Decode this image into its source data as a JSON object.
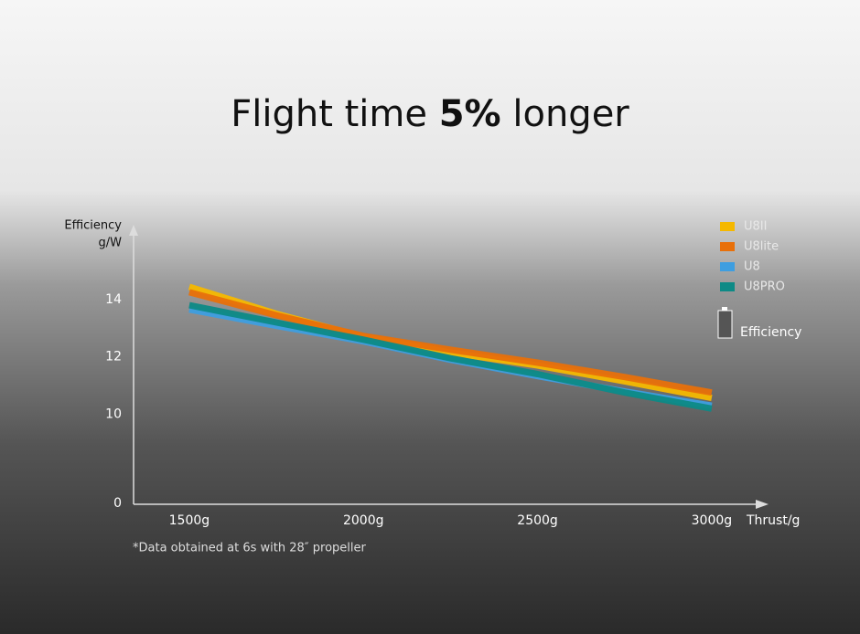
{
  "chart_data": {
    "type": "line",
    "title": {
      "prefix": "Flight time",
      "highlight": "5%",
      "suffix": "longer"
    },
    "y_label": [
      "Efficiency",
      "g/W"
    ],
    "x_label": "Thrust/g",
    "note": "*Data obtained at 6s with 28″ propeller",
    "legend_note": "Efficiency",
    "legend": "top-right",
    "x": [
      1500,
      1750,
      2000,
      2250,
      2500,
      2750,
      3000
    ],
    "xlim": [
      1340,
      3150
    ],
    "xticks": [
      {
        "value": 1500,
        "label": "1500g"
      },
      {
        "value": 2000,
        "label": "2000g"
      },
      {
        "value": 2500,
        "label": "2500g"
      },
      {
        "value": 3000,
        "label": "3000g"
      }
    ],
    "ylim": [
      0,
      16.3
    ],
    "y_break": [
      0,
      6.9
    ],
    "yticks": [
      0,
      10,
      12,
      14
    ],
    "series": [
      {
        "name": "U8II",
        "color": "#f5b800",
        "values": [
          14.44,
          13.5,
          12.7,
          12.15,
          11.7,
          11.15,
          10.57
        ]
      },
      {
        "name": "U8lite",
        "color": "#e8700a",
        "values": [
          14.25,
          13.45,
          12.73,
          12.25,
          11.8,
          11.3,
          10.76
        ]
      },
      {
        "name": "U8",
        "color": "#3e9ee0",
        "values": [
          13.65,
          13.08,
          12.54,
          11.9,
          11.33,
          10.8,
          10.3
        ]
      },
      {
        "name": "U8PRO",
        "color": "#0d8a86",
        "values": [
          13.8,
          13.2,
          12.6,
          11.95,
          11.4,
          10.76,
          10.2
        ]
      }
    ]
  }
}
